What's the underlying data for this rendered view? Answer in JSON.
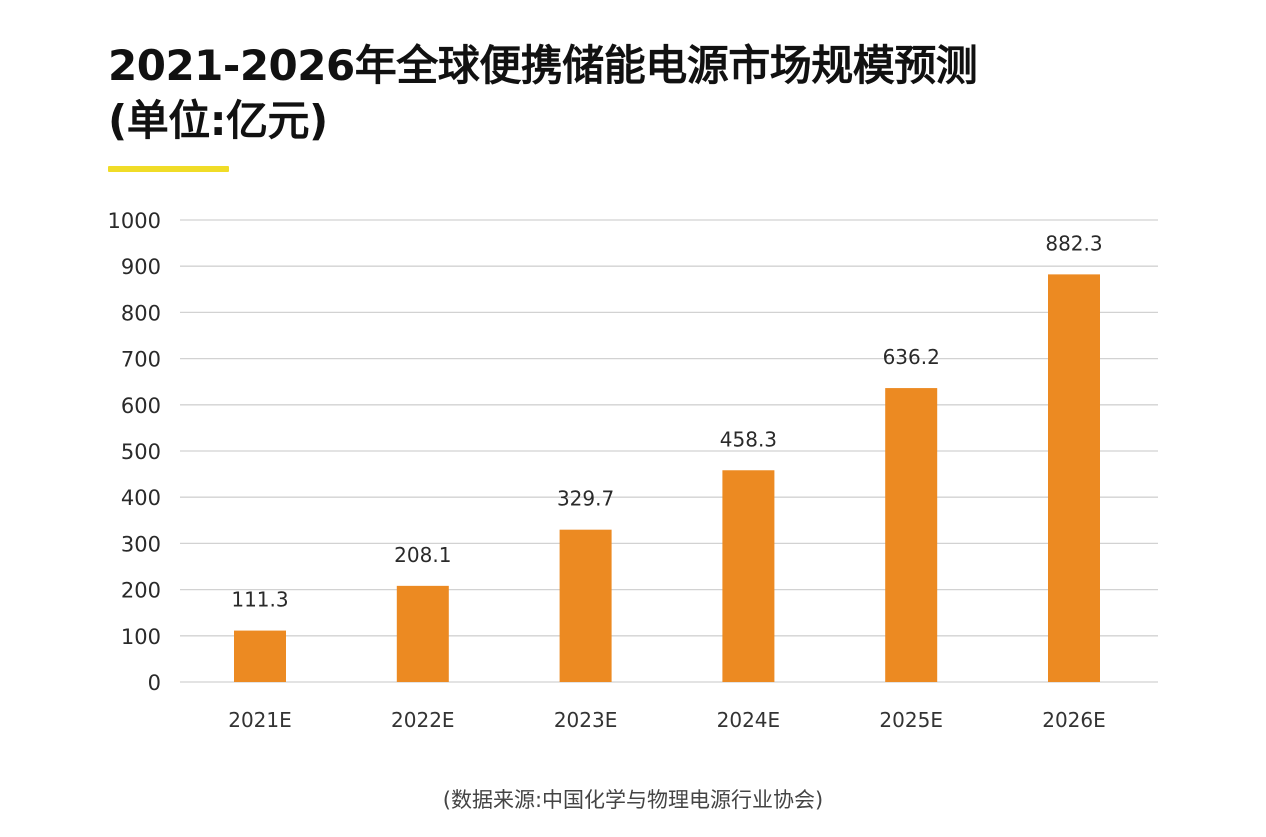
{
  "header": {
    "title_line1": "2021-2026年全球便携储能电源市场规模预测",
    "title_line2": "(单位:亿元)"
  },
  "colors": {
    "accent": "#f0dc27",
    "bar": "#ec8a22",
    "grid": "#d2d2d2",
    "text": "#111111"
  },
  "source": "(数据来源:中国化学与物理电源行业协会)",
  "chart_data": {
    "type": "bar",
    "title": "2021-2026年全球便携储能电源市场规模预测",
    "subtitle": "(单位:亿元)",
    "unit": "亿元",
    "categories": [
      "2021E",
      "2022E",
      "2023E",
      "2024E",
      "2025E",
      "2026E"
    ],
    "values": [
      111.3,
      208.1,
      329.7,
      458.3,
      636.2,
      882.3
    ],
    "data_labels": [
      "111.3",
      "208.1",
      "329.7",
      "458.3",
      "636.2",
      "882.3"
    ],
    "xlabel": "",
    "ylabel": "",
    "ylim": [
      0,
      1000
    ],
    "yticks": [
      0,
      100,
      200,
      300,
      400,
      500,
      600,
      700,
      800,
      900,
      1000
    ],
    "grid": true,
    "legend": "none",
    "source": "(数据来源:中国化学与物理电源行业协会)"
  }
}
